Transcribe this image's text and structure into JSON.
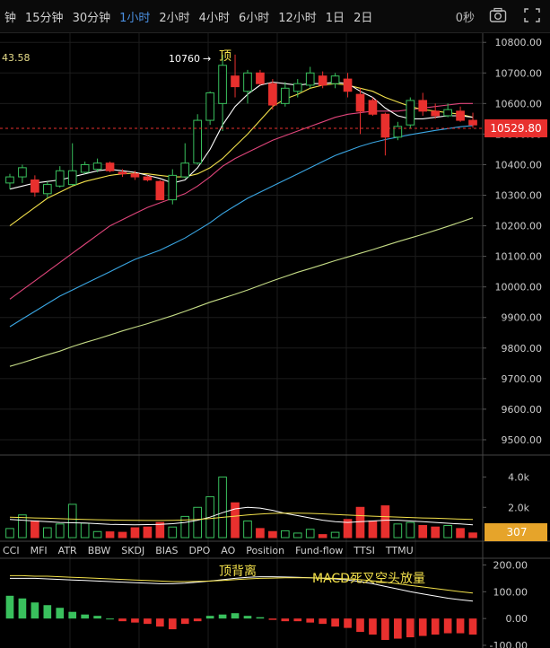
{
  "timeframes": [
    "钟",
    "15分钟",
    "30分钟",
    "1小时",
    "2小时",
    "4小时",
    "6小时",
    "12小时",
    "1日",
    "2日"
  ],
  "active_timeframe": "1小时",
  "timer": "0秒",
  "icons": {
    "camera": "camera-icon",
    "fullscreen": "fullscreen-icon"
  },
  "ma_readout": "43.58",
  "peak_label": "10760",
  "peak_arrow": "→",
  "peak_annotation": "顶",
  "current_price": "10529.80",
  "price_ticks": [
    "10800.00",
    "10700.00",
    "10600.00",
    "10500.00",
    "10400.00",
    "10300.00",
    "10200.00",
    "10100.00",
    "10000.00",
    "9900.00",
    "9800.00",
    "9700.00",
    "9600.00",
    "9500.00"
  ],
  "volume_ticks": [
    "4.0k",
    "2.0k"
  ],
  "volume_value": "307",
  "indicator_tabs": [
    "CCI",
    "MFI",
    "ATR",
    "BBW",
    "SKDJ",
    "BIAS",
    "DPO",
    "AO",
    "Position",
    "Fund-flow",
    "TTSI",
    "TTMU"
  ],
  "macd_ticks": [
    "200.00",
    "100.00",
    "0.00",
    "-100.00"
  ],
  "macd_annotations": {
    "top_divergence": "顶背离",
    "death_cross": "MACD死叉空头放量"
  },
  "colors": {
    "up": "#39c05d",
    "down": "#e8302e",
    "ma5": "#ffffff",
    "ma10": "#f3e14b",
    "ma20": "#e0457b",
    "ma30": "#3aa6e3",
    "ma60": "#c5dc86",
    "price_badge": "#e8302e",
    "vol_badge": "#e6a42a"
  },
  "chart_data": {
    "type": "candlestick",
    "ylim": [
      9450,
      10830
    ],
    "candles": [
      {
        "o": 10340,
        "h": 10370,
        "l": 10320,
        "c": 10360
      },
      {
        "o": 10360,
        "h": 10400,
        "l": 10340,
        "c": 10390
      },
      {
        "o": 10350,
        "h": 10365,
        "l": 10295,
        "c": 10310
      },
      {
        "o": 10305,
        "h": 10345,
        "l": 10290,
        "c": 10335
      },
      {
        "o": 10330,
        "h": 10395,
        "l": 10325,
        "c": 10380
      },
      {
        "o": 10335,
        "h": 10470,
        "l": 10330,
        "c": 10380
      },
      {
        "o": 10375,
        "h": 10410,
        "l": 10370,
        "c": 10400
      },
      {
        "o": 10385,
        "h": 10420,
        "l": 10375,
        "c": 10405
      },
      {
        "o": 10405,
        "h": 10410,
        "l": 10375,
        "c": 10380
      },
      {
        "o": 10375,
        "h": 10385,
        "l": 10360,
        "c": 10370
      },
      {
        "o": 10370,
        "h": 10380,
        "l": 10350,
        "c": 10360
      },
      {
        "o": 10360,
        "h": 10365,
        "l": 10345,
        "c": 10350
      },
      {
        "o": 10345,
        "h": 10350,
        "l": 10285,
        "c": 10285
      },
      {
        "o": 10285,
        "h": 10385,
        "l": 10270,
        "c": 10365
      },
      {
        "o": 10360,
        "h": 10470,
        "l": 10355,
        "c": 10405
      },
      {
        "o": 10405,
        "h": 10565,
        "l": 10400,
        "c": 10545
      },
      {
        "o": 10545,
        "h": 10640,
        "l": 10530,
        "c": 10635
      },
      {
        "o": 10600,
        "h": 10760,
        "l": 10510,
        "c": 10725
      },
      {
        "o": 10690,
        "h": 10760,
        "l": 10620,
        "c": 10655
      },
      {
        "o": 10640,
        "h": 10710,
        "l": 10600,
        "c": 10700
      },
      {
        "o": 10700,
        "h": 10710,
        "l": 10660,
        "c": 10665
      },
      {
        "o": 10665,
        "h": 10680,
        "l": 10580,
        "c": 10595
      },
      {
        "o": 10600,
        "h": 10670,
        "l": 10590,
        "c": 10650
      },
      {
        "o": 10640,
        "h": 10680,
        "l": 10620,
        "c": 10665
      },
      {
        "o": 10660,
        "h": 10720,
        "l": 10650,
        "c": 10700
      },
      {
        "o": 10690,
        "h": 10705,
        "l": 10650,
        "c": 10660
      },
      {
        "o": 10665,
        "h": 10700,
        "l": 10650,
        "c": 10690
      },
      {
        "o": 10680,
        "h": 10700,
        "l": 10620,
        "c": 10640
      },
      {
        "o": 10630,
        "h": 10650,
        "l": 10500,
        "c": 10575
      },
      {
        "o": 10610,
        "h": 10620,
        "l": 10560,
        "c": 10565
      },
      {
        "o": 10565,
        "h": 10570,
        "l": 10430,
        "c": 10490
      },
      {
        "o": 10490,
        "h": 10540,
        "l": 10480,
        "c": 10525
      },
      {
        "o": 10530,
        "h": 10620,
        "l": 10520,
        "c": 10610
      },
      {
        "o": 10610,
        "h": 10635,
        "l": 10560,
        "c": 10575
      },
      {
        "o": 10575,
        "h": 10600,
        "l": 10550,
        "c": 10560
      },
      {
        "o": 10560,
        "h": 10600,
        "l": 10555,
        "c": 10580
      },
      {
        "o": 10575,
        "h": 10590,
        "l": 10540,
        "c": 10545
      },
      {
        "o": 10545,
        "h": 10570,
        "l": 10520,
        "c": 10530
      }
    ],
    "ma5": [
      10320,
      10330,
      10340,
      10345,
      10350,
      10360,
      10370,
      10380,
      10385,
      10380,
      10375,
      10365,
      10355,
      10340,
      10350,
      10390,
      10450,
      10530,
      10590,
      10630,
      10660,
      10670,
      10665,
      10660,
      10665,
      10665,
      10670,
      10665,
      10640,
      10620,
      10585,
      10560,
      10550,
      10550,
      10555,
      10560,
      10560,
      10555
    ],
    "ma10": [
      10200,
      10230,
      10260,
      10290,
      10310,
      10330,
      10345,
      10355,
      10365,
      10370,
      10372,
      10370,
      10365,
      10360,
      10360,
      10370,
      10390,
      10420,
      10460,
      10500,
      10545,
      10590,
      10615,
      10630,
      10650,
      10660,
      10665,
      10660,
      10650,
      10640,
      10620,
      10605,
      10590,
      10580,
      10575,
      10570,
      10565,
      10555
    ],
    "ma20": [
      9960,
      9990,
      10020,
      10050,
      10080,
      10110,
      10140,
      10170,
      10200,
      10220,
      10240,
      10260,
      10275,
      10290,
      10305,
      10330,
      10360,
      10395,
      10420,
      10440,
      10460,
      10480,
      10495,
      10510,
      10525,
      10540,
      10555,
      10565,
      10570,
      10575,
      10575,
      10575,
      10580,
      10585,
      10590,
      10595,
      10600,
      10600
    ],
    "ma30": [
      9870,
      9895,
      9920,
      9945,
      9970,
      9990,
      10010,
      10030,
      10050,
      10070,
      10090,
      10105,
      10120,
      10140,
      10160,
      10185,
      10210,
      10240,
      10265,
      10290,
      10310,
      10330,
      10350,
      10370,
      10390,
      10410,
      10430,
      10445,
      10460,
      10472,
      10482,
      10490,
      10498,
      10505,
      10512,
      10518,
      10524,
      10528
    ],
    "ma60": [
      9740,
      9752,
      9765,
      9778,
      9790,
      9805,
      9818,
      9830,
      9843,
      9856,
      9868,
      9880,
      9893,
      9906,
      9920,
      9935,
      9950,
      9963,
      9976,
      9990,
      10005,
      10020,
      10034,
      10048,
      10060,
      10073,
      10086,
      10098,
      10110,
      10122,
      10135,
      10148,
      10160,
      10172,
      10185,
      10198,
      10212,
      10226
    ],
    "volume": [
      600,
      1500,
      1100,
      650,
      900,
      2200,
      950,
      400,
      380,
      350,
      650,
      700,
      1000,
      700,
      1400,
      2000,
      2700,
      4000,
      2300,
      1100,
      600,
      400,
      450,
      300,
      550,
      200,
      350,
      1200,
      2000,
      1100,
      2100,
      900,
      1000,
      800,
      700,
      800,
      600,
      307
    ],
    "vol_ma": [
      1200,
      1150,
      1100,
      1050,
      1000,
      980,
      960,
      920,
      880,
      860,
      850,
      860,
      880,
      920,
      1000,
      1150,
      1350,
      1650,
      1900,
      2000,
      1950,
      1800,
      1600,
      1450,
      1300,
      1150,
      1050,
      1000,
      1050,
      1100,
      1150,
      1150,
      1100,
      1050,
      1000,
      950,
      900,
      850
    ],
    "vol_ma2": [
      1350,
      1330,
      1300,
      1280,
      1250,
      1220,
      1200,
      1180,
      1160,
      1150,
      1140,
      1130,
      1130,
      1140,
      1160,
      1200,
      1260,
      1340,
      1420,
      1500,
      1560,
      1600,
      1620,
      1620,
      1600,
      1570,
      1530,
      1490,
      1450,
      1420,
      1390,
      1360,
      1330,
      1300,
      1280,
      1250,
      1220,
      1200
    ],
    "macd_hist": [
      85,
      75,
      60,
      50,
      40,
      25,
      15,
      10,
      0,
      -10,
      -15,
      -20,
      -30,
      -40,
      -20,
      -10,
      10,
      15,
      20,
      10,
      5,
      -5,
      -10,
      -10,
      -15,
      -20,
      -30,
      -35,
      -50,
      -60,
      -80,
      -75,
      -70,
      -65,
      -60,
      -55,
      -55,
      -60
    ],
    "macd_dif": [
      150,
      150,
      150,
      148,
      146,
      144,
      142,
      140,
      138,
      136,
      134,
      132,
      130,
      130,
      132,
      136,
      140,
      145,
      150,
      154,
      156,
      156,
      155,
      154,
      152,
      150,
      148,
      144,
      138,
      130,
      120,
      110,
      100,
      92,
      84,
      76,
      70,
      65
    ],
    "macd_dea": [
      160,
      160,
      158,
      158,
      156,
      154,
      152,
      150,
      148,
      146,
      144,
      142,
      140,
      138,
      138,
      139,
      140,
      142,
      145,
      148,
      150,
      151,
      152,
      152,
      152,
      151,
      150,
      148,
      145,
      141,
      136,
      130,
      124,
      118,
      112,
      106,
      100,
      95
    ],
    "macd_ylim": [
      -110,
      215
    ]
  }
}
